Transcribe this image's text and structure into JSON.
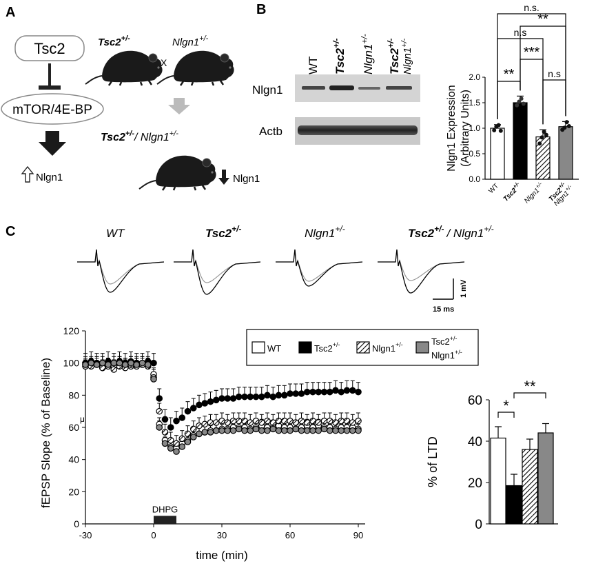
{
  "panel_labels": {
    "a": "A",
    "b": "B",
    "c": "C"
  },
  "panel_a": {
    "tsc2": "Tsc2",
    "mtor": "mTOR/4E-BP",
    "nlgn1_up": "Nlgn1",
    "cross_x": "X",
    "tsc2_gene": "Tsc2",
    "tsc2_sup": "+/-",
    "nlgn1_gene": "Nlgn1",
    "nlgn1_sup": "+/-",
    "double_tsc2": "Tsc2",
    "double_sup1": "+/-",
    "double_sep": "/ ",
    "double_nlgn1": "Nlgn1",
    "double_sup2": "+/-",
    "nlgn1_down": "Nlgn1"
  },
  "panel_b": {
    "lane_labels": {
      "wt": "WT",
      "tsc2": "Tsc2",
      "tsc2_sup": "+/-",
      "nlgn1": "Nlgn1",
      "nlgn1_sup": "+/-",
      "double_top": "Tsc2",
      "double_top_sup": "+/-",
      "double_bottom": "Nlgn1",
      "double_bottom_sup": "+/-"
    },
    "row_labels": {
      "nlgn1": "Nlgn1",
      "actb": "Actb"
    },
    "sig": {
      "ns_top": "n.s.",
      "ns_mid": "n.s",
      "double_star_top": "**",
      "triple_star": "***",
      "double_star_left": "**",
      "ns_right": "n.s"
    }
  },
  "panel_c": {
    "traces": {
      "wt": "WT",
      "tsc2": "Tsc2",
      "tsc2_sup": "+/-",
      "nlgn1": "Nlgn1",
      "nlgn1_sup": "+/-",
      "double_tsc2": "Tsc2",
      "double_sup1": "+/-",
      "double_sep": "/ Nlgn1",
      "double_sup2": "+/-",
      "scale_mv": "1 mV",
      "scale_ms": "15 ms"
    },
    "legend": {
      "wt": "WT",
      "tsc2": "Tsc2",
      "tsc2_sup": "+/-",
      "nlgn1": "Nlgn1",
      "nlgn1_sup": "+/-",
      "double1": "Tsc2",
      "double1_sup": "+/-",
      "double2": "Nlgn1",
      "double2_sup": "+/-"
    },
    "dhpg": "DHPG",
    "mu_mark": "μ"
  },
  "chart_data": [
    {
      "type": "bar",
      "title": "",
      "ylabel": "Nlgn1 Expression (Arbitrary Units)",
      "xlabel": "",
      "ylim": [
        0,
        2.0
      ],
      "yticks": [
        "0.0",
        "0.5",
        "1.0",
        "1.5",
        "2.0"
      ],
      "categories": [
        "WT",
        "Tsc2",
        "Nlgn1",
        "Tsc2/Nlgn1"
      ],
      "category_labels": [
        {
          "main": "WT",
          "sup": ""
        },
        {
          "main": "Tsc2",
          "sup": "+/-"
        },
        {
          "main": "Nlgn1",
          "sup": "+/-"
        },
        {
          "main": "Tsc2",
          "sup": "+/-",
          "line2": "Nlgn1",
          "line2_sup": "+/-"
        }
      ],
      "values": [
        1.0,
        1.5,
        0.83,
        1.03
      ],
      "errors": [
        0.07,
        0.13,
        0.14,
        0.1
      ],
      "points": [
        [
          0.96,
          1.03,
          1.06,
          0.95
        ],
        [
          1.45,
          1.52,
          1.58,
          1.48
        ],
        [
          0.7,
          0.82,
          0.93,
          0.87
        ],
        [
          0.97,
          1.01,
          1.12,
          1.04
        ]
      ],
      "fills": [
        "#ffffff",
        "#000000",
        "hatch",
        "#888888"
      ],
      "significance": [
        {
          "pair": [
            0,
            1
          ],
          "label": "**"
        },
        {
          "pair": [
            1,
            2
          ],
          "label": "***"
        },
        {
          "pair": [
            2,
            3
          ],
          "label": "n.s"
        },
        {
          "pair": [
            0,
            2
          ],
          "label": "n.s"
        },
        {
          "pair": [
            1,
            3
          ],
          "label": "**"
        },
        {
          "pair": [
            0,
            3
          ],
          "label": "n.s."
        }
      ]
    },
    {
      "type": "scatter",
      "title": "",
      "xlabel": "time (min)",
      "ylabel": "fEPSP Slope (% of Baseline)",
      "xlim": [
        -30,
        90
      ],
      "ylim": [
        0,
        120
      ],
      "xticks": [
        -30,
        0,
        30,
        60,
        90
      ],
      "yticks": [
        0,
        20,
        40,
        60,
        80,
        100,
        120
      ],
      "stimulus": {
        "label": "DHPG",
        "start": 0,
        "end": 10
      },
      "series": [
        {
          "name": "WT",
          "color": "#ffffff",
          "error": 4,
          "x": [
            -30,
            -27.5,
            -25,
            -22.5,
            -20,
            -17.5,
            -15,
            -12.5,
            -10,
            -7.5,
            -5,
            -2.5,
            0,
            2.5,
            5,
            7.5,
            10,
            12.5,
            15,
            17.5,
            20,
            22.5,
            25,
            27.5,
            30,
            32.5,
            35,
            37.5,
            40,
            42.5,
            45,
            47.5,
            50,
            52.5,
            55,
            57.5,
            60,
            62.5,
            65,
            67.5,
            70,
            72.5,
            75,
            77.5,
            80,
            82.5,
            85,
            87.5,
            90
          ],
          "y": [
            98,
            99,
            100,
            97,
            99,
            98,
            100,
            99,
            98,
            100,
            99,
            100,
            93,
            62,
            52,
            48,
            47,
            50,
            52,
            55,
            56,
            57,
            58,
            58,
            59,
            59,
            60,
            60,
            60,
            59,
            60,
            61,
            60,
            60,
            61,
            60,
            60,
            59,
            60,
            61,
            60,
            61,
            60,
            60,
            59,
            60,
            60,
            60,
            59
          ]
        },
        {
          "name": "Tsc2+/-",
          "color": "#000000",
          "error": 6,
          "x": [
            -30,
            -27.5,
            -25,
            -22.5,
            -20,
            -17.5,
            -15,
            -12.5,
            -10,
            -7.5,
            -5,
            -2.5,
            0,
            2.5,
            5,
            7.5,
            10,
            12.5,
            15,
            17.5,
            20,
            22.5,
            25,
            27.5,
            30,
            32.5,
            35,
            37.5,
            40,
            42.5,
            45,
            47.5,
            50,
            52.5,
            55,
            57.5,
            60,
            62.5,
            65,
            67.5,
            70,
            72.5,
            75,
            77.5,
            80,
            82.5,
            85,
            87.5,
            90
          ],
          "y": [
            100,
            101,
            100,
            100,
            101,
            100,
            101,
            100,
            101,
            100,
            100,
            101,
            100,
            78,
            65,
            60,
            64,
            66,
            70,
            72,
            74,
            75,
            76,
            77,
            78,
            78,
            78,
            79,
            79,
            79,
            79,
            79,
            80,
            79,
            80,
            80,
            81,
            81,
            81,
            82,
            82,
            82,
            82,
            82,
            83,
            82,
            83,
            83,
            82
          ]
        },
        {
          "name": "Nlgn1+/-",
          "color": "hatch",
          "error": 5,
          "x": [
            -30,
            -27.5,
            -25,
            -22.5,
            -20,
            -17.5,
            -15,
            -12.5,
            -10,
            -7.5,
            -5,
            -2.5,
            0,
            2.5,
            5,
            7.5,
            10,
            12.5,
            15,
            17.5,
            20,
            22.5,
            25,
            27.5,
            30,
            32.5,
            35,
            37.5,
            40,
            42.5,
            45,
            47.5,
            50,
            52.5,
            55,
            57.5,
            60,
            62.5,
            65,
            67.5,
            70,
            72.5,
            75,
            77.5,
            80,
            82.5,
            85,
            87.5,
            90
          ],
          "y": [
            99,
            98,
            99,
            97,
            98,
            96,
            98,
            97,
            99,
            98,
            99,
            98,
            91,
            70,
            57,
            52,
            50,
            53,
            56,
            59,
            61,
            62,
            63,
            63,
            64,
            63,
            64,
            64,
            64,
            63,
            64,
            63,
            64,
            63,
            64,
            64,
            64,
            63,
            64,
            63,
            64,
            63,
            64,
            64,
            63,
            64,
            64,
            63,
            64
          ]
        },
        {
          "name": "Tsc2+/-/Nlgn1+/-",
          "color": "#888888",
          "error": 4,
          "x": [
            -30,
            -27.5,
            -25,
            -22.5,
            -20,
            -17.5,
            -15,
            -12.5,
            -10,
            -7.5,
            -5,
            -2.5,
            0,
            2.5,
            5,
            7.5,
            10,
            12.5,
            15,
            17.5,
            20,
            22.5,
            25,
            27.5,
            30,
            32.5,
            35,
            37.5,
            40,
            42.5,
            45,
            47.5,
            50,
            52.5,
            55,
            57.5,
            60,
            62.5,
            65,
            67.5,
            70,
            72.5,
            75,
            77.5,
            80,
            82.5,
            85,
            87.5,
            90
          ],
          "y": [
            99,
            100,
            99,
            100,
            99,
            100,
            100,
            99,
            100,
            99,
            100,
            99,
            90,
            60,
            50,
            47,
            45,
            48,
            51,
            54,
            56,
            57,
            57,
            58,
            58,
            58,
            58,
            59,
            58,
            58,
            59,
            58,
            58,
            59,
            58,
            58,
            58,
            59,
            58,
            58,
            58,
            58,
            59,
            58,
            58,
            58,
            58,
            58,
            58
          ]
        }
      ]
    },
    {
      "type": "bar",
      "title": "",
      "ylabel": "% of LTD",
      "xlabel": "",
      "ylim": [
        0,
        60
      ],
      "yticks": [
        0,
        20,
        40,
        60
      ],
      "categories": [
        "WT",
        "Tsc2+/-",
        "Nlgn1+/-",
        "Tsc2+/-/Nlgn1+/-"
      ],
      "values": [
        41.5,
        18.5,
        36,
        44
      ],
      "errors": [
        5.5,
        5.5,
        5,
        4.5
      ],
      "fills": [
        "#ffffff",
        "#000000",
        "hatch",
        "#888888"
      ],
      "significance": [
        {
          "pair": [
            0,
            1
          ],
          "label": "*"
        },
        {
          "pair": [
            1,
            3
          ],
          "label": "**"
        }
      ]
    }
  ]
}
